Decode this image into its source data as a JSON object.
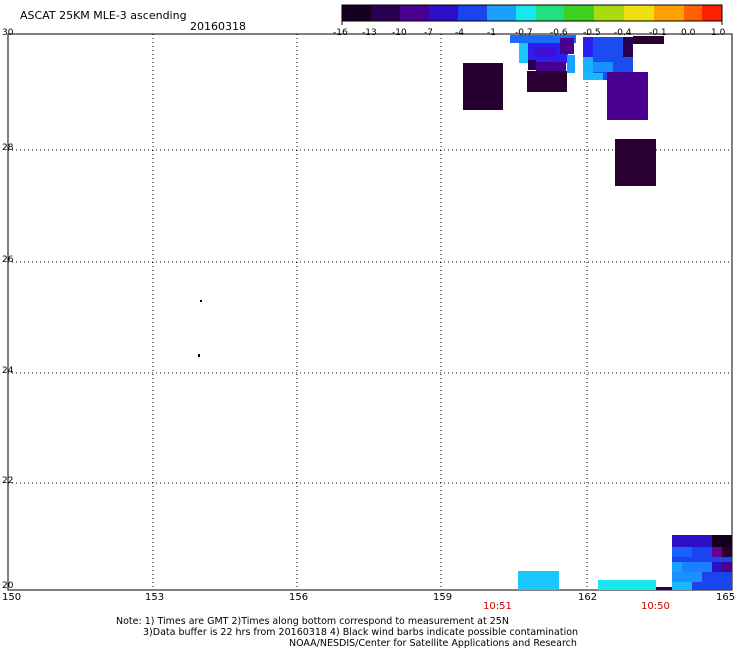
{
  "header": {
    "title": "ASCAT 25KM MLE-3 ascending",
    "date": "20160318"
  },
  "colorbar": {
    "tick_labels": [
      "-16",
      "-13",
      "-10",
      "-7",
      "-4",
      "-1",
      "-0.7",
      "-0.6",
      "-0.5",
      "-0.4",
      "-0.1",
      "0.0",
      "1.0"
    ],
    "colors": [
      "#14001e",
      "#2a0050",
      "#4a0090",
      "#2c10c8",
      "#1a44f0",
      "#1aa0ff",
      "#18e8ee",
      "#20e080",
      "#40d020",
      "#a8dc10",
      "#f0e010",
      "#ffa000",
      "#ff6000",
      "#ff2000"
    ]
  },
  "map": {
    "lat_labels": [
      "30",
      "28",
      "26",
      "24",
      "22",
      "20"
    ],
    "lon_labels": [
      "150",
      "153",
      "156",
      "159",
      "162",
      "165"
    ],
    "time_labels": [
      "10:51",
      "10:50"
    ]
  },
  "footer": {
    "note_line1": "Note: 1) Times are GMT 2)Times along bottom correspond to measurement at 25N",
    "note_line2": "3)Data buffer is 22 hrs from 20160318 4) Black wind barbs indicate possible contamination",
    "credit": "NOAA/NESDIS/Center for Satellite Applications and Research"
  }
}
